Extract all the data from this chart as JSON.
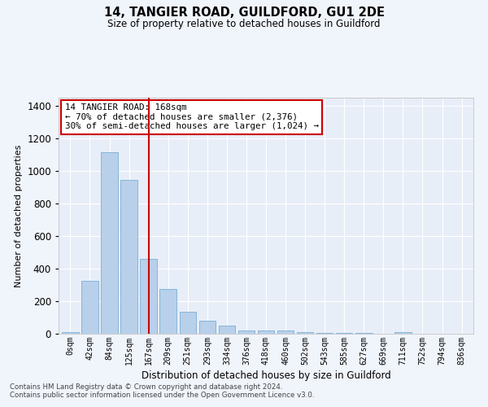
{
  "title": "14, TANGIER ROAD, GUILDFORD, GU1 2DE",
  "subtitle": "Size of property relative to detached houses in Guildford",
  "xlabel": "Distribution of detached houses by size in Guildford",
  "ylabel": "Number of detached properties",
  "categories": [
    "0sqm",
    "42sqm",
    "84sqm",
    "125sqm",
    "167sqm",
    "209sqm",
    "251sqm",
    "293sqm",
    "334sqm",
    "376sqm",
    "418sqm",
    "460sqm",
    "502sqm",
    "543sqm",
    "585sqm",
    "627sqm",
    "669sqm",
    "711sqm",
    "752sqm",
    "794sqm",
    "836sqm"
  ],
  "values": [
    10,
    325,
    1115,
    945,
    460,
    275,
    135,
    78,
    48,
    20,
    22,
    18,
    12,
    4,
    4,
    4,
    0,
    12,
    0,
    0,
    0
  ],
  "bar_color": "#b8d0ea",
  "bar_edge_color": "#7aafd4",
  "vline_x_index": 4,
  "vline_color": "#cc0000",
  "annotation_text": "14 TANGIER ROAD: 168sqm\n← 70% of detached houses are smaller (2,376)\n30% of semi-detached houses are larger (1,024) →",
  "annotation_box_color": "#ffffff",
  "annotation_box_edge_color": "#cc0000",
  "ylim": [
    0,
    1450
  ],
  "yticks": [
    0,
    200,
    400,
    600,
    800,
    1000,
    1200,
    1400
  ],
  "bg_color": "#e8eef8",
  "fig_bg_color": "#f0f4fb",
  "footer1": "Contains HM Land Registry data © Crown copyright and database right 2024.",
  "footer2": "Contains public sector information licensed under the Open Government Licence v3.0."
}
